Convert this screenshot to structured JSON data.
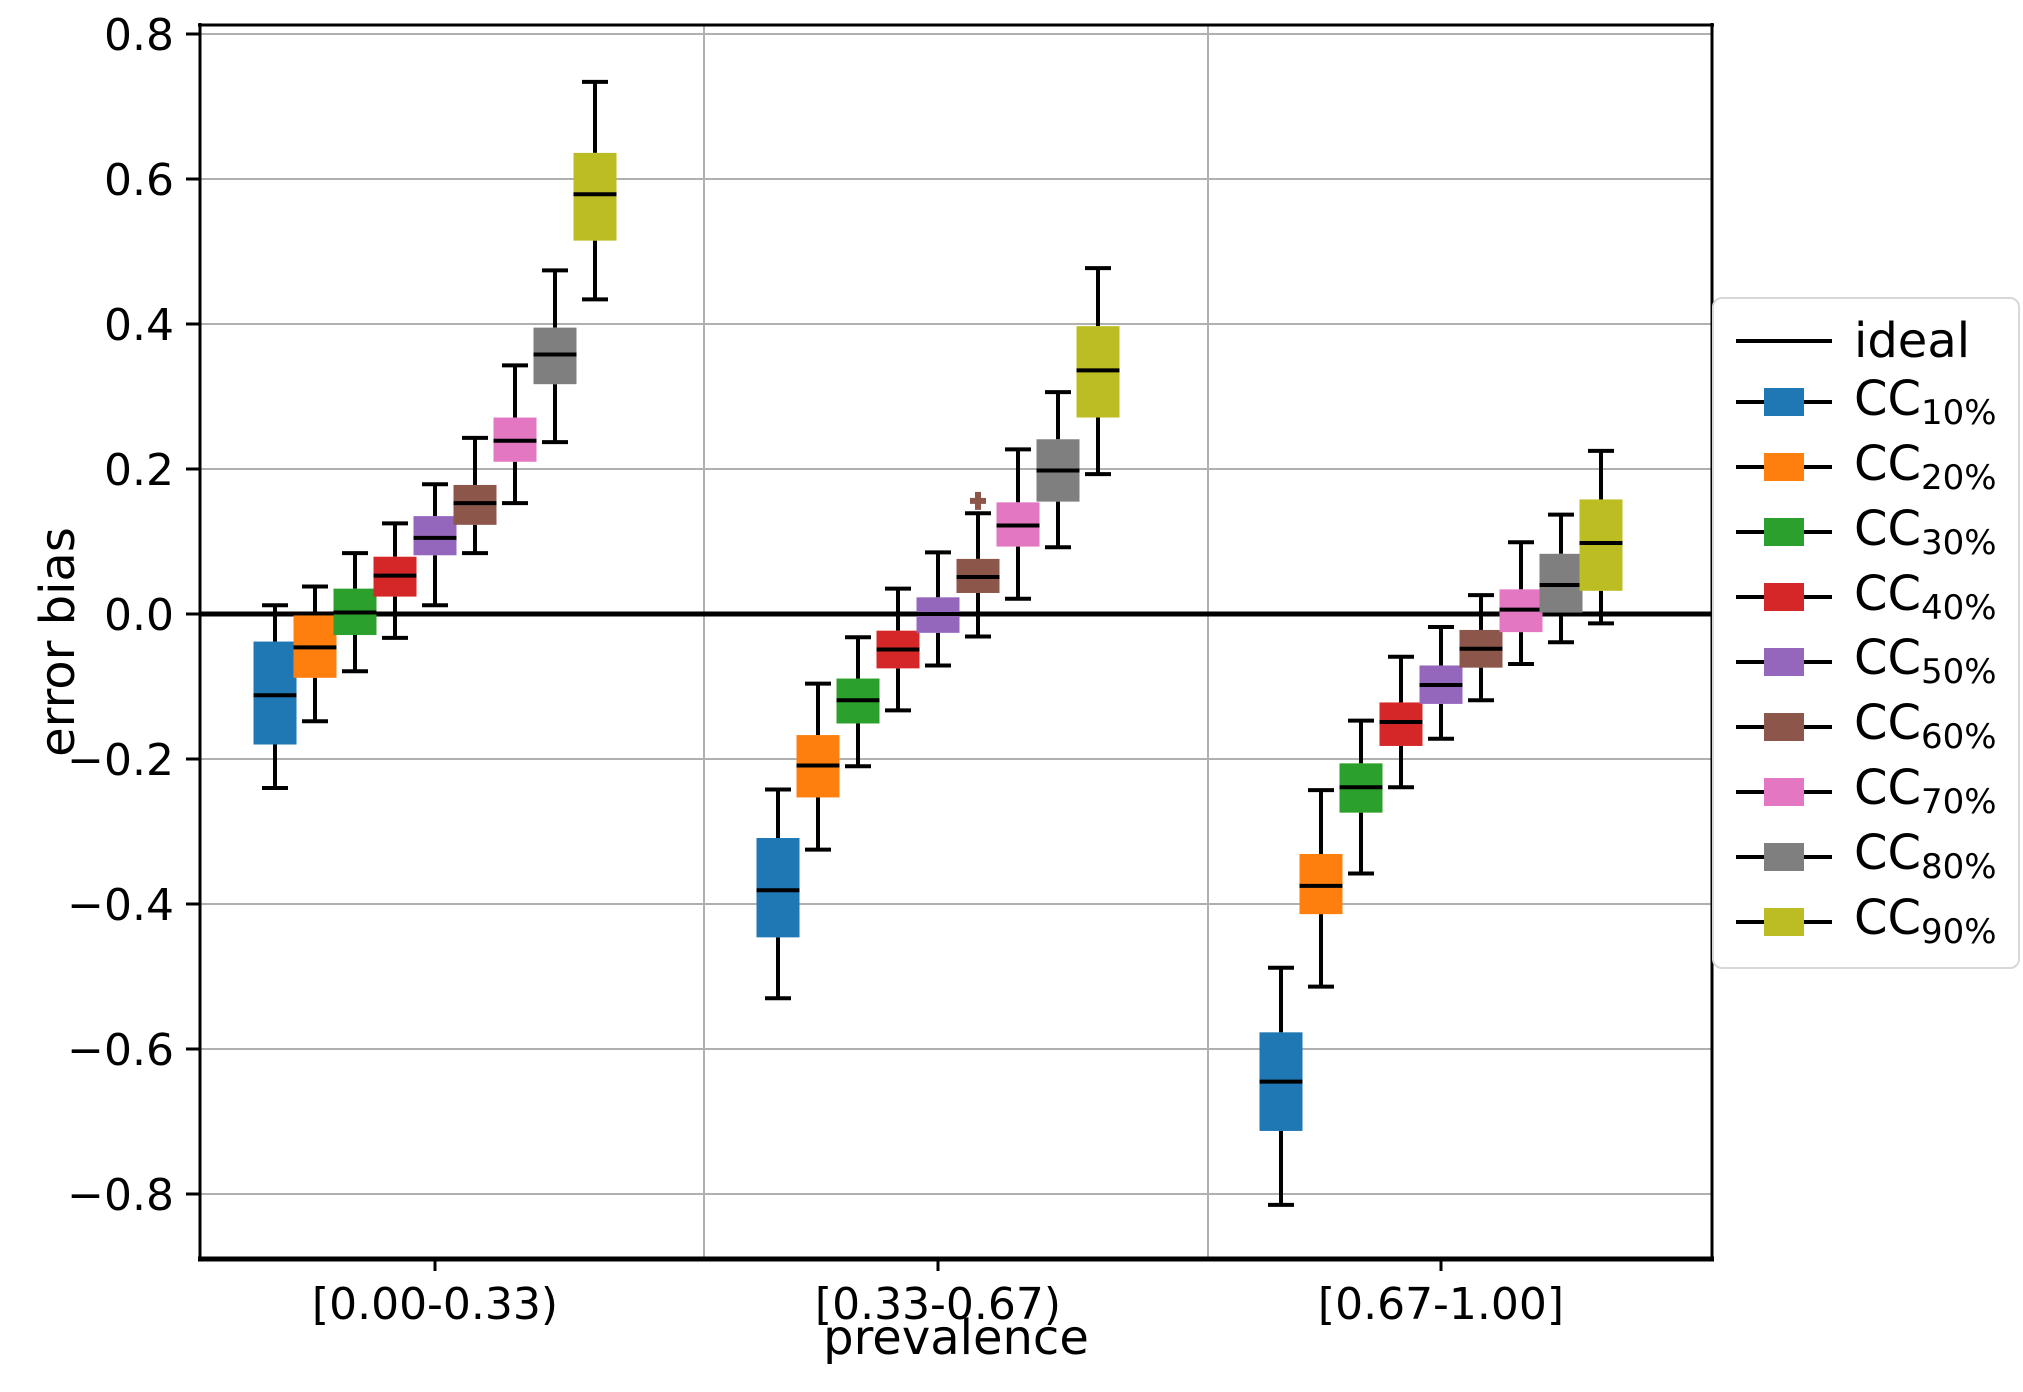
{
  "y_axis": {
    "label": "error bias",
    "ticks": [
      {
        "label": "0.8",
        "value": 0.8
      },
      {
        "label": "0.6",
        "value": 0.6
      },
      {
        "label": "0.4",
        "value": 0.4
      },
      {
        "label": "0.2",
        "value": 0.2
      },
      {
        "label": "0.0",
        "value": 0.0
      },
      {
        "label": "−0.2",
        "value": -0.2
      },
      {
        "label": "−0.4",
        "value": -0.4
      },
      {
        "label": "−0.6",
        "value": -0.6
      },
      {
        "label": "−0.8",
        "value": -0.8
      }
    ]
  },
  "x_axis": {
    "label": "prevalence",
    "categories": [
      "[0.00-0.33)",
      "[0.33-0.67)",
      "[0.67-1.00]"
    ]
  },
  "legend": {
    "entries": [
      {
        "type": "line",
        "label": "ideal",
        "color": "#000000"
      },
      {
        "type": "box",
        "base": "CC",
        "sub": "10%",
        "color": "#1f77b4"
      },
      {
        "type": "box",
        "base": "CC",
        "sub": "20%",
        "color": "#ff7f0e"
      },
      {
        "type": "box",
        "base": "CC",
        "sub": "30%",
        "color": "#2ca02c"
      },
      {
        "type": "box",
        "base": "CC",
        "sub": "40%",
        "color": "#d62728"
      },
      {
        "type": "box",
        "base": "CC",
        "sub": "50%",
        "color": "#9467bd"
      },
      {
        "type": "box",
        "base": "CC",
        "sub": "60%",
        "color": "#8c564b"
      },
      {
        "type": "box",
        "base": "CC",
        "sub": "70%",
        "color": "#e377c2"
      },
      {
        "type": "box",
        "base": "CC",
        "sub": "80%",
        "color": "#7f7f7f"
      },
      {
        "type": "box",
        "base": "CC",
        "sub": "90%",
        "color": "#bcbd22"
      }
    ]
  },
  "ideal_line": {
    "label": "ideal",
    "value": 0.0,
    "color": "#000000"
  },
  "grid_color": "#b0b0b0",
  "chart_data": {
    "type": "boxplot",
    "title": "",
    "xlabel": "prevalence",
    "ylabel": "error bias",
    "ylim": [
      -0.89,
      0.81
    ],
    "grid": true,
    "legend_position": "right",
    "groups": [
      "[0.00-0.33)",
      "[0.33-0.67)",
      "[0.67-1.00]"
    ],
    "series": [
      {
        "name": "CC_10%",
        "color": "#1f77b4",
        "boxes": [
          {
            "whislo": -0.24,
            "q1": -0.18,
            "med": -0.112,
            "q3": -0.038,
            "whishi": 0.012
          },
          {
            "whislo": -0.53,
            "q1": -0.446,
            "med": -0.381,
            "q3": -0.309,
            "whishi": -0.242
          },
          {
            "whislo": -0.815,
            "q1": -0.713,
            "med": -0.645,
            "q3": -0.577,
            "whishi": -0.488
          }
        ]
      },
      {
        "name": "CC_20%",
        "color": "#ff7f0e",
        "boxes": [
          {
            "whislo": -0.148,
            "q1": -0.088,
            "med": -0.046,
            "q3": -0.002,
            "whishi": 0.038
          },
          {
            "whislo": -0.325,
            "q1": -0.253,
            "med": -0.209,
            "q3": -0.167,
            "whishi": -0.096
          },
          {
            "whislo": -0.514,
            "q1": -0.414,
            "med": -0.375,
            "q3": -0.331,
            "whishi": -0.243
          }
        ]
      },
      {
        "name": "CC_30%",
        "color": "#2ca02c",
        "boxes": [
          {
            "whislo": -0.079,
            "q1": -0.029,
            "med": 0.002,
            "q3": 0.035,
            "whishi": 0.084
          },
          {
            "whislo": -0.21,
            "q1": -0.151,
            "med": -0.119,
            "q3": -0.089,
            "whishi": -0.032
          },
          {
            "whislo": -0.358,
            "q1": -0.274,
            "med": -0.239,
            "q3": -0.206,
            "whishi": -0.147
          }
        ]
      },
      {
        "name": "CC_40%",
        "color": "#d62728",
        "boxes": [
          {
            "whislo": -0.033,
            "q1": 0.024,
            "med": 0.053,
            "q3": 0.079,
            "whishi": 0.125
          },
          {
            "whislo": -0.133,
            "q1": -0.075,
            "med": -0.049,
            "q3": -0.023,
            "whishi": 0.035
          },
          {
            "whislo": -0.239,
            "q1": -0.182,
            "med": -0.149,
            "q3": -0.122,
            "whishi": -0.059
          }
        ]
      },
      {
        "name": "CC_50%",
        "color": "#9467bd",
        "boxes": [
          {
            "whislo": 0.012,
            "q1": 0.081,
            "med": 0.105,
            "q3": 0.135,
            "whishi": 0.179
          },
          {
            "whislo": -0.071,
            "q1": -0.026,
            "med": 0.0,
            "q3": 0.023,
            "whishi": 0.085
          },
          {
            "whislo": -0.172,
            "q1": -0.124,
            "med": -0.098,
            "q3": -0.071,
            "whishi": -0.018
          }
        ]
      },
      {
        "name": "CC_60%",
        "color": "#8c564b",
        "boxes": [
          {
            "whislo": 0.084,
            "q1": 0.123,
            "med": 0.153,
            "q3": 0.178,
            "whishi": 0.243
          },
          {
            "whislo": -0.031,
            "q1": 0.029,
            "med": 0.051,
            "q3": 0.076,
            "whishi": 0.139
          },
          {
            "whislo": -0.119,
            "q1": -0.074,
            "med": -0.048,
            "q3": -0.022,
            "whishi": 0.026
          }
        ]
      },
      {
        "name": "CC_70%",
        "color": "#e377c2",
        "boxes": [
          {
            "whislo": 0.153,
            "q1": 0.21,
            "med": 0.239,
            "q3": 0.271,
            "whishi": 0.343
          },
          {
            "whislo": 0.021,
            "q1": 0.093,
            "med": 0.122,
            "q3": 0.154,
            "whishi": 0.227
          },
          {
            "whislo": -0.069,
            "q1": -0.025,
            "med": 0.006,
            "q3": 0.034,
            "whishi": 0.099
          }
        ]
      },
      {
        "name": "CC_80%",
        "color": "#7f7f7f",
        "boxes": [
          {
            "whislo": 0.237,
            "q1": 0.317,
            "med": 0.358,
            "q3": 0.395,
            "whishi": 0.474
          },
          {
            "whislo": 0.092,
            "q1": 0.155,
            "med": 0.198,
            "q3": 0.241,
            "whishi": 0.306
          },
          {
            "whislo": -0.039,
            "q1": 0.002,
            "med": 0.04,
            "q3": 0.083,
            "whishi": 0.137
          }
        ]
      },
      {
        "name": "CC_90%",
        "color": "#bcbd22",
        "boxes": [
          {
            "whislo": 0.434,
            "q1": 0.515,
            "med": 0.579,
            "q3": 0.636,
            "whishi": 0.734
          },
          {
            "whislo": 0.193,
            "q1": 0.271,
            "med": 0.336,
            "q3": 0.397,
            "whishi": 0.477
          },
          {
            "whislo": -0.013,
            "q1": 0.032,
            "med": 0.098,
            "q3": 0.158,
            "whishi": 0.225
          }
        ]
      }
    ],
    "outliers": [
      {
        "series_index": 5,
        "series": "CC_60%",
        "group_index": 1,
        "value": 0.156,
        "marker": "plus"
      }
    ]
  }
}
